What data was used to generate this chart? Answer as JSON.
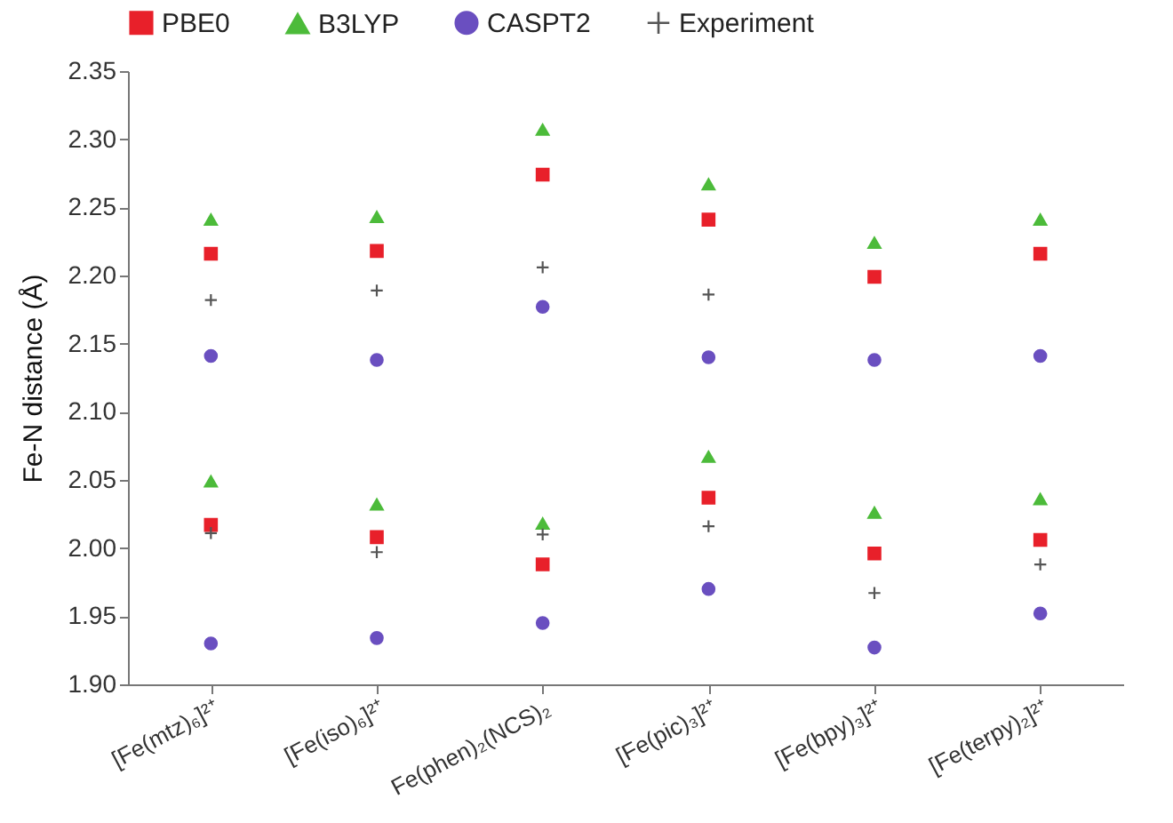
{
  "chart_data": {
    "type": "scatter",
    "ylabel": "Fe-N distance (Å)",
    "categories": [
      "[Fe(mtz)₆]²⁺",
      "[Fe(iso)₆]²⁺",
      "Fe(phen)₂(NCS)₂",
      "[Fe(pic)₃]²⁺",
      "[Fe(bpy)₃]²⁺",
      "[Fe(terpy)₂]²⁺"
    ],
    "series": [
      {
        "name": "PBE0",
        "color": "#e8202a",
        "marker": "square",
        "x": [
          "[Fe(mtz)₆]²⁺",
          "[Fe(mtz)₆]²⁺",
          "[Fe(iso)₆]²⁺",
          "[Fe(iso)₆]²⁺",
          "Fe(phen)₂(NCS)₂",
          "Fe(phen)₂(NCS)₂",
          "[Fe(pic)₃]²⁺",
          "[Fe(pic)₃]²⁺",
          "[Fe(bpy)₃]²⁺",
          "[Fe(bpy)₃]²⁺",
          "[Fe(terpy)₂]²⁺",
          "[Fe(terpy)₂]²⁺"
        ],
        "values": [
          2.216,
          2.017,
          2.218,
          2.008,
          2.274,
          1.988,
          2.241,
          2.037,
          2.199,
          1.996,
          2.216,
          2.006
        ]
      },
      {
        "name": "B3LYP",
        "color": "#4cbb3a",
        "marker": "triangle",
        "x": [
          "[Fe(mtz)₆]²⁺",
          "[Fe(mtz)₆]²⁺",
          "[Fe(iso)₆]²⁺",
          "[Fe(iso)₆]²⁺",
          "Fe(phen)₂(NCS)₂",
          "Fe(phen)₂(NCS)₂",
          "[Fe(pic)₃]²⁺",
          "[Fe(pic)₃]²⁺",
          "[Fe(bpy)₃]²⁺",
          "[Fe(bpy)₃]²⁺",
          "[Fe(terpy)₂]²⁺",
          "[Fe(terpy)₂]²⁺"
        ],
        "values": [
          2.241,
          2.049,
          2.243,
          2.032,
          2.307,
          2.018,
          2.267,
          2.067,
          2.224,
          2.026,
          2.241,
          2.036
        ]
      },
      {
        "name": "CASPT2",
        "color": "#6a4fc0",
        "marker": "circle",
        "x": [
          "[Fe(mtz)₆]²⁺",
          "[Fe(mtz)₆]²⁺",
          "[Fe(iso)₆]²⁺",
          "[Fe(iso)₆]²⁺",
          "Fe(phen)₂(NCS)₂",
          "Fe(phen)₂(NCS)₂",
          "[Fe(pic)₃]²⁺",
          "[Fe(pic)₃]²⁺",
          "[Fe(bpy)₃]²⁺",
          "[Fe(bpy)₃]²⁺",
          "[Fe(terpy)₂]²⁺",
          "[Fe(terpy)₂]²⁺"
        ],
        "values": [
          2.141,
          1.93,
          2.138,
          1.934,
          2.177,
          1.945,
          2.14,
          1.97,
          2.138,
          1.927,
          2.141,
          1.952
        ]
      },
      {
        "name": "Experiment",
        "color": "#555555",
        "marker": "cross",
        "x": [
          "[Fe(mtz)₆]²⁺",
          "[Fe(mtz)₆]²⁺",
          "[Fe(iso)₆]²⁺",
          "[Fe(iso)₆]²⁺",
          "Fe(phen)₂(NCS)₂",
          "Fe(phen)₂(NCS)₂",
          "[Fe(pic)₃]²⁺",
          "[Fe(pic)₃]²⁺",
          "[Fe(bpy)₃]²⁺",
          "[Fe(terpy)₂]²⁺"
        ],
        "values": [
          2.182,
          2.011,
          2.189,
          1.997,
          2.206,
          2.01,
          2.186,
          2.016,
          1.967,
          1.988
        ]
      }
    ],
    "ylim": [
      1.9,
      2.35
    ],
    "yticks": [
      {
        "value": 1.9,
        "label": "1.90"
      },
      1.95,
      {
        "value": 2.0,
        "label": "2.00"
      },
      2.05,
      {
        "value": 2.1,
        "label": "2.10"
      },
      2.15,
      {
        "value": 2.2,
        "label": "2.20"
      },
      2.25,
      {
        "value": 2.3,
        "label": "2.30"
      },
      2.35
    ],
    "legend": "top",
    "grid": false
  }
}
